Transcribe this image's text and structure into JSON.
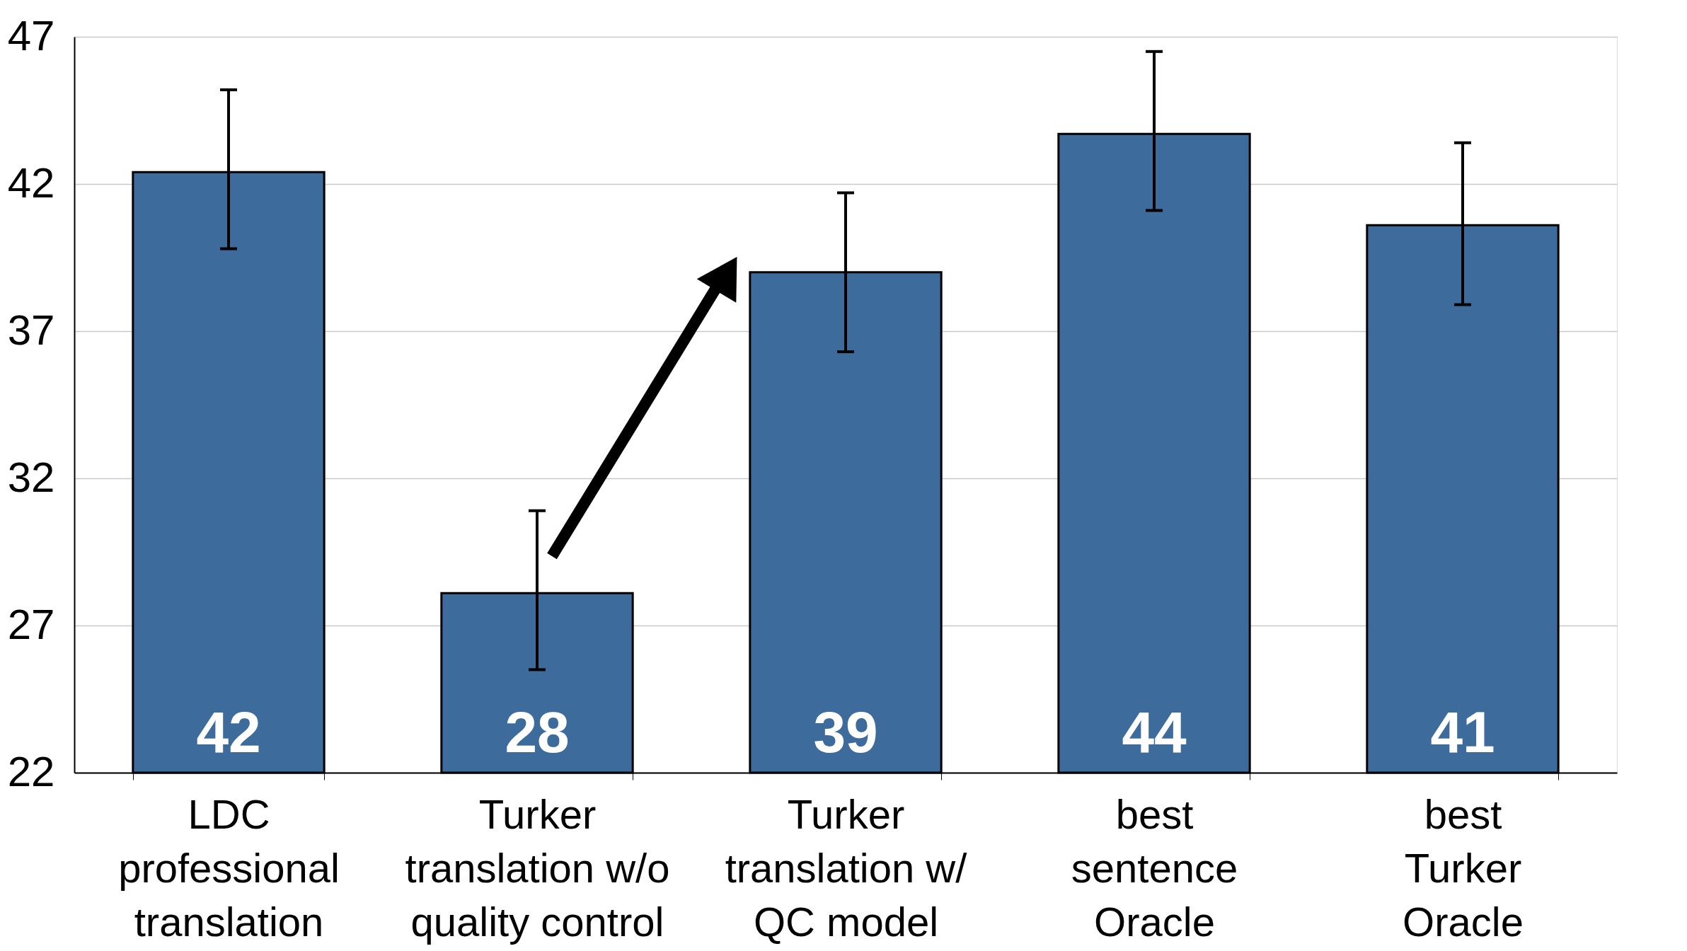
{
  "chart_data": {
    "type": "bar",
    "categories": [
      "LDC\nprofessional\ntranslation",
      "Turker\ntranslation w/o\nquality control",
      "Turker\ntranslation w/\nQC model",
      "best\nsentence\nOracle",
      "best\nTurker\nOracle"
    ],
    "values": [
      42.4,
      28.1,
      39.0,
      43.7,
      40.6
    ],
    "value_labels": [
      "42",
      "28",
      "39",
      "44",
      "41"
    ],
    "errors": [
      [
        39.8,
        45.2
      ],
      [
        25.5,
        30.9
      ],
      [
        36.3,
        41.7
      ],
      [
        41.1,
        46.5
      ],
      [
        37.9,
        43.4
      ]
    ],
    "color": "#3c6b9c",
    "ylim": [
      22,
      47
    ],
    "yticks": [
      22,
      27,
      32,
      37,
      42,
      47
    ],
    "grid": "y"
  }
}
